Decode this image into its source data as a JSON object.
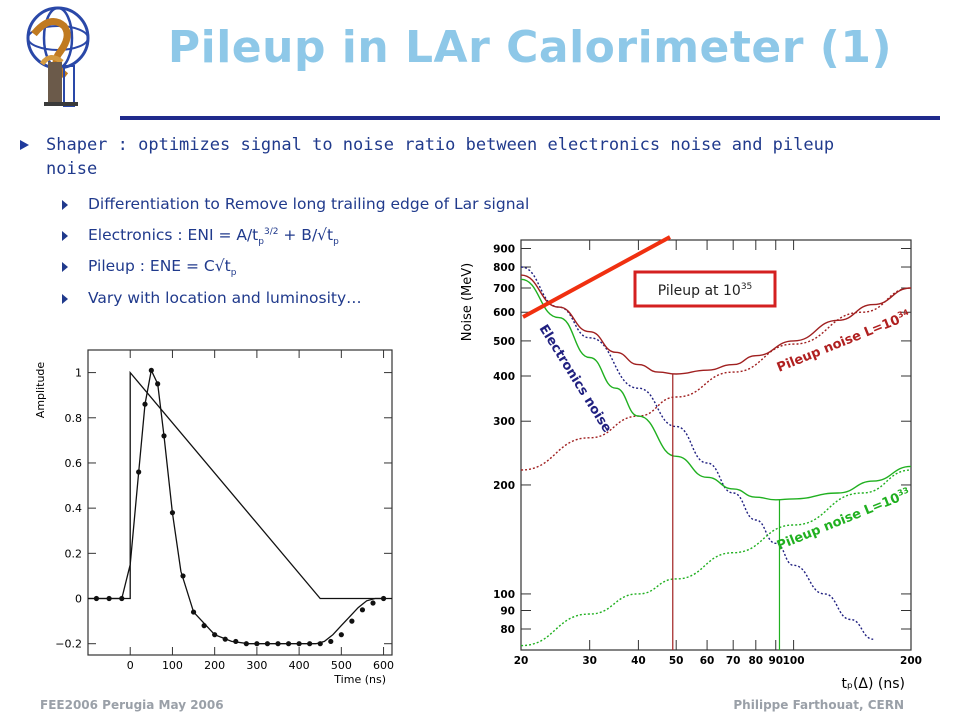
{
  "slide": {
    "title": "Pileup in LAr Calorimeter (1)",
    "bullet_main": "Shaper : optimizes signal to noise ratio between electronics noise and pileup noise",
    "sub_bullets": {
      "b1": "Differentiation to Remove long trailing edge of Lar signal",
      "b2_prefix": "Electronics : ENI = A/t",
      "b2_sub1": "p",
      "b2_sup": "3/2",
      "b2_mid": " + B/√t",
      "b2_sub2": "p",
      "b3_prefix": "Pileup : ENE = C√t",
      "b3_sub": "p",
      "b4": "Vary with location and luminosity…"
    },
    "footer_left": "FEE2006 Perugia May 2006",
    "footer_right": "Philippe Farthouat, CERN"
  },
  "colors": {
    "title": "#8ec8e8",
    "rule": "#1f2a8c",
    "text": "#203a8c",
    "footer": "#9aa0a8"
  },
  "chart_data": [
    {
      "type": "line",
      "xlabel": "Time (ns)",
      "ylabel": "Amplitude",
      "xlim": [
        -100,
        620
      ],
      "ylim": [
        -0.25,
        1.1
      ],
      "x_ticks": [
        0,
        100,
        200,
        300,
        400,
        500,
        600
      ],
      "y_ticks": [
        -0.2,
        0,
        0.2,
        0.4,
        0.6,
        0.8,
        1
      ],
      "x_tick_labels": [
        "0",
        "100",
        "200",
        "300",
        "400",
        "500",
        "600"
      ],
      "y_tick_labels": [
        "−0.2",
        "0",
        "0.2",
        "0.4",
        "0.6",
        "0.8",
        "1"
      ],
      "series": [
        {
          "x": [
            -100,
            0,
            0,
            450,
            620
          ],
          "y": [
            0,
            0,
            1.0,
            0,
            0
          ]
        },
        {
          "x": [
            -100,
            -60,
            -20,
            0,
            20,
            35,
            50,
            65,
            80,
            100,
            120,
            150,
            180,
            200,
            240,
            280,
            320,
            380,
            440,
            460,
            480,
            500,
            520,
            540,
            560,
            580,
            600
          ],
          "y": [
            0,
            0,
            0,
            0.15,
            0.56,
            0.86,
            1.01,
            0.95,
            0.72,
            0.38,
            0.12,
            -0.06,
            -0.12,
            -0.16,
            -0.19,
            -0.2,
            -0.2,
            -0.2,
            -0.2,
            -0.19,
            -0.16,
            -0.12,
            -0.08,
            -0.04,
            -0.01,
            0.0,
            0.0
          ]
        }
      ],
      "markers": {
        "x": [
          -80,
          -50,
          -20,
          20,
          35,
          50,
          65,
          80,
          100,
          125,
          150,
          175,
          200,
          225,
          250,
          275,
          300,
          325,
          350,
          375,
          400,
          425,
          450,
          475,
          500,
          525,
          550,
          575,
          600
        ],
        "y": [
          0,
          0,
          0,
          0.56,
          0.86,
          1.01,
          0.95,
          0.72,
          0.38,
          0.1,
          -0.06,
          -0.12,
          -0.16,
          -0.18,
          -0.19,
          -0.2,
          -0.2,
          -0.2,
          -0.2,
          -0.2,
          -0.2,
          -0.2,
          -0.2,
          -0.19,
          -0.16,
          -0.1,
          -0.05,
          -0.02,
          0.0
        ]
      }
    },
    {
      "type": "line",
      "scale": "log-log",
      "xlabel": "tₚ(Δ) (ns)",
      "ylabel": "Noise (MeV)",
      "xlim": [
        20,
        200
      ],
      "ylim": [
        70,
        950
      ],
      "x_ticks": [
        20,
        30,
        40,
        50,
        60,
        70,
        80,
        90,
        100,
        200
      ],
      "x_tick_labels": [
        "20",
        "30",
        "40",
        "50",
        "60",
        "70",
        "80",
        "90",
        "100",
        "200"
      ],
      "y_ticks": [
        80,
        90,
        100,
        200,
        300,
        400,
        500,
        600,
        700,
        800,
        900
      ],
      "y_tick_labels": [
        "80",
        "90",
        "100",
        "200",
        "300",
        "400",
        "500",
        "600",
        "700",
        "800",
        "900"
      ],
      "series_labels": {
        "electronics": "Electronics noise",
        "pileup_high_prefix": "Pileup noise L=10",
        "pileup_high_exp": "34",
        "pileup_low_prefix": "Pileup noise L=10",
        "pileup_low_exp": "33"
      },
      "series": [
        {
          "key": "electronics",
          "color": "#202080",
          "x": [
            20,
            25,
            30,
            40,
            50,
            60,
            70,
            80,
            90,
            100,
            120,
            140,
            160
          ],
          "y": [
            800,
            620,
            510,
            370,
            290,
            230,
            190,
            160,
            138,
            120,
            100,
            85,
            75
          ]
        },
        {
          "key": "pileup_high",
          "color": "#a02020",
          "x": [
            20,
            30,
            40,
            50,
            70,
            100,
            150,
            200
          ],
          "y": [
            220,
            270,
            310,
            350,
            410,
            490,
            600,
            700
          ]
        },
        {
          "key": "pileup_low",
          "color": "#20b020",
          "x": [
            20,
            30,
            40,
            50,
            70,
            100,
            150,
            200
          ],
          "y": [
            72,
            88,
            100,
            110,
            130,
            155,
            190,
            220
          ]
        },
        {
          "key": "total_high",
          "color": "#a02020",
          "x": [
            20,
            25,
            30,
            35,
            40,
            45,
            50,
            60,
            70,
            80,
            100,
            130,
            160,
            200
          ],
          "y": [
            760,
            620,
            530,
            465,
            430,
            410,
            405,
            415,
            430,
            455,
            500,
            570,
            630,
            700
          ]
        },
        {
          "key": "total_low",
          "color": "#20b020",
          "x": [
            20,
            25,
            30,
            35,
            40,
            50,
            60,
            70,
            80,
            90,
            100,
            130,
            160,
            200
          ],
          "y": [
            740,
            580,
            450,
            370,
            310,
            240,
            210,
            195,
            185,
            182,
            183,
            190,
            205,
            225
          ]
        }
      ],
      "vlines": [
        {
          "x": 49,
          "y_top": 405,
          "color": "#a02020"
        },
        {
          "x": 92,
          "y_top": 182,
          "color": "#20b020"
        }
      ],
      "annotation": {
        "prefix": "Pileup at 10",
        "exp": "35"
      }
    }
  ]
}
